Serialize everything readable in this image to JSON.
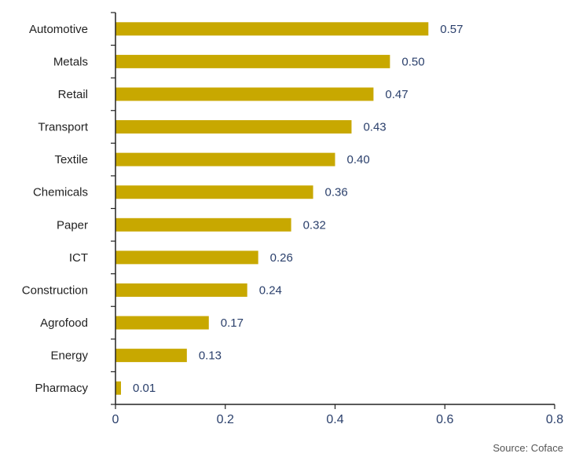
{
  "chart_data": {
    "type": "bar",
    "orientation": "horizontal",
    "categories": [
      "Automotive",
      "Metals",
      "Retail",
      "Transport",
      "Textile",
      "Chemicals",
      "Paper",
      "ICT",
      "Construction",
      "Agrofood",
      "Energy",
      "Pharmacy"
    ],
    "values": [
      0.57,
      0.5,
      0.47,
      0.43,
      0.4,
      0.36,
      0.32,
      0.26,
      0.24,
      0.17,
      0.13,
      0.01
    ],
    "data_labels": [
      "0.57",
      "0.50",
      "0.47",
      "0.43",
      "0.40",
      "0.36",
      "0.32",
      "0.26",
      "0.24",
      "0.17",
      "0.13",
      "0.01"
    ],
    "xlim": [
      0,
      0.8
    ],
    "xticks": [
      0,
      0.2,
      0.4,
      0.6,
      0.8
    ],
    "xtick_labels": [
      "0",
      "0.2",
      "0.4",
      "0.6",
      "0.8"
    ],
    "grid": false,
    "legend": "none",
    "bar_color": "#c8a800",
    "axis_color": "#222222",
    "label_color": "#2a3f6b"
  },
  "source": "Source: Coface"
}
